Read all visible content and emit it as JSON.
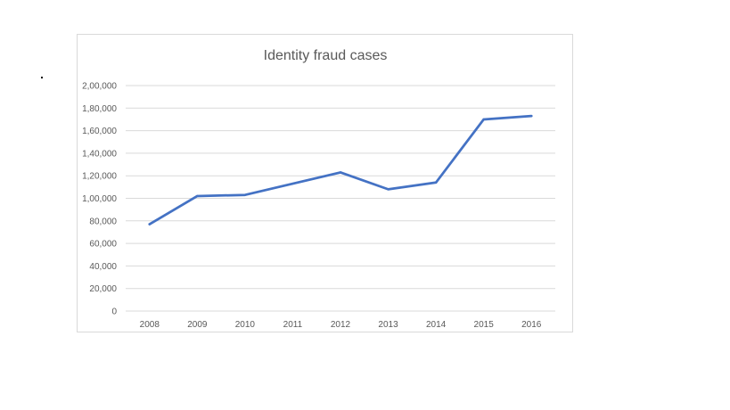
{
  "chart_data": {
    "type": "line",
    "title": "Identity fraud cases",
    "xlabel": "",
    "ylabel": "",
    "categories": [
      "2008",
      "2009",
      "2010",
      "2011",
      "2012",
      "2013",
      "2014",
      "2015",
      "2016"
    ],
    "series": [
      {
        "values": [
          77000,
          102000,
          103000,
          113000,
          123000,
          108000,
          114000,
          170000,
          173000
        ]
      }
    ],
    "ylim": [
      0,
      200000
    ],
    "y_ticks": [
      0,
      20000,
      40000,
      60000,
      80000,
      100000,
      120000,
      140000,
      160000,
      180000,
      200000
    ],
    "y_tick_labels": [
      "0",
      "20,000",
      "40,000",
      "60,000",
      "80,000",
      "1,00,000",
      "1,20,000",
      "1,40,000",
      "1,60,000",
      "1,80,000",
      "2,00,000"
    ],
    "grid": true,
    "legend": "none",
    "colors": {
      "line": "#4472c4",
      "grid": "#d9d9d9",
      "text": "#595959"
    }
  }
}
